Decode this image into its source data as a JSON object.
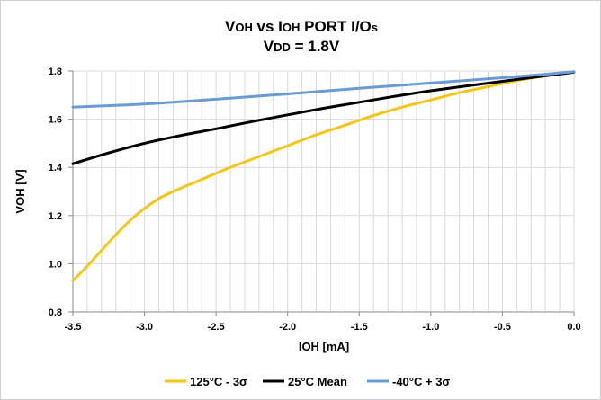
{
  "chart_data": {
    "type": "line",
    "title_line1": {
      "parts": [
        {
          "text": "V",
          "size": "big"
        },
        {
          "text": "OH",
          "size": "small"
        },
        {
          "text": " vs I",
          "size": "big"
        },
        {
          "text": "OH",
          "size": "small"
        },
        {
          "text": "  PORT I/O",
          "size": "big"
        },
        {
          "text": "s",
          "size": "small"
        }
      ]
    },
    "title_line2": {
      "parts": [
        {
          "text": "V",
          "size": "big"
        },
        {
          "text": "DD",
          "size": "small"
        },
        {
          "text": " = 1.8V",
          "size": "big"
        }
      ]
    },
    "xlabel": "IOH [mA]",
    "ylabel": "VOH [V]",
    "xlim": [
      -3.5,
      0.0
    ],
    "ylim": [
      0.8,
      1.8
    ],
    "x_ticks": [
      "-3.5",
      "-3.0",
      "-2.5",
      "-2.0",
      "-1.5",
      "-1.0",
      "-0.5",
      "0.0"
    ],
    "y_ticks": [
      "0.8",
      "1.0",
      "1.2",
      "1.4",
      "1.6",
      "1.8"
    ],
    "grid": true,
    "legend_position": "bottom",
    "series": [
      {
        "name": "125°C - 3σ",
        "color": "#F5C518",
        "x": [
          -3.5,
          -3.4,
          -3.3,
          -3.2,
          -3.1,
          -3.0,
          -2.9,
          -2.8,
          -2.6,
          -2.4,
          -2.2,
          -2.0,
          -1.8,
          -1.6,
          -1.4,
          -1.2,
          -1.0,
          -0.8,
          -0.6,
          -0.4,
          -0.2,
          0.0
        ],
        "y": [
          0.93,
          0.99,
          1.055,
          1.12,
          1.18,
          1.23,
          1.27,
          1.3,
          1.35,
          1.4,
          1.445,
          1.49,
          1.535,
          1.575,
          1.615,
          1.65,
          1.68,
          1.71,
          1.735,
          1.76,
          1.78,
          1.795
        ]
      },
      {
        "name": "25°C Mean",
        "color": "#000000",
        "x": [
          -3.5,
          -3.25,
          -3.0,
          -2.75,
          -2.5,
          -2.25,
          -2.0,
          -1.75,
          -1.5,
          -1.25,
          -1.0,
          -0.75,
          -0.5,
          -0.25,
          0.0
        ],
        "y": [
          1.415,
          1.46,
          1.5,
          1.532,
          1.56,
          1.59,
          1.618,
          1.645,
          1.67,
          1.695,
          1.718,
          1.738,
          1.757,
          1.776,
          1.795
        ]
      },
      {
        "name": "-40°C + 3σ",
        "color": "#6A9BD5",
        "x": [
          -3.5,
          -3.0,
          -2.5,
          -2.0,
          -1.5,
          -1.0,
          -0.5,
          0.0
        ],
        "y": [
          1.65,
          1.663,
          1.683,
          1.705,
          1.728,
          1.75,
          1.772,
          1.797
        ]
      }
    ]
  }
}
